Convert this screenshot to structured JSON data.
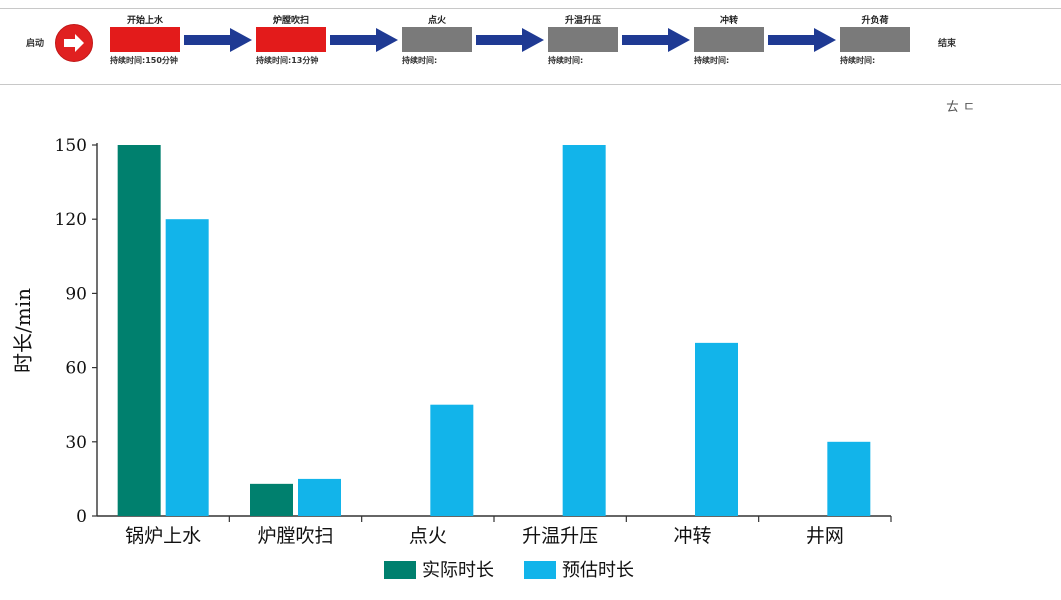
{
  "process": {
    "start_label": "启动",
    "end_label": "结束",
    "stages": [
      {
        "name": "开始上水",
        "time_text": "持续时间:150分钟",
        "status_color": "#e31b1b"
      },
      {
        "name": "炉膛吹扫",
        "time_text": "持续时间:13分钟",
        "status_color": "#e31b1b"
      },
      {
        "name": "点火",
        "time_text": "持续时间:",
        "status_color": "#7a7a7a"
      },
      {
        "name": "升温升压",
        "time_text": "持续时间:",
        "status_color": "#7a7a7a"
      },
      {
        "name": "冲转",
        "time_text": "持续时间:",
        "status_color": "#7a7a7a"
      },
      {
        "name": "升负荷",
        "time_text": "持续时间:",
        "status_color": "#7a7a7a"
      }
    ],
    "arrow_color": "#1f3a93",
    "start_icon": "right-arrow-icon"
  },
  "toolbar": {
    "icons": [
      "restore-icon",
      "back-icon"
    ],
    "icon_glyphs": "ㄊ ㄷ"
  },
  "chart_data": {
    "type": "bar",
    "title": "",
    "xlabel": "",
    "ylabel": "时长/min",
    "ylim": [
      0,
      150
    ],
    "yticks": [
      0,
      30,
      60,
      90,
      120,
      150
    ],
    "categories": [
      "锅炉上水",
      "炉膛吹扫",
      "点火",
      "升温升压",
      "冲转",
      "井网"
    ],
    "series": [
      {
        "name": "实际时长",
        "color": "#00806e",
        "values": [
          150,
          13,
          0,
          0,
          0,
          0
        ]
      },
      {
        "name": "预估时长",
        "color": "#12b4ea",
        "values": [
          120,
          15,
          45,
          150,
          70,
          30
        ]
      }
    ],
    "legend_position": "bottom",
    "grid": false
  }
}
